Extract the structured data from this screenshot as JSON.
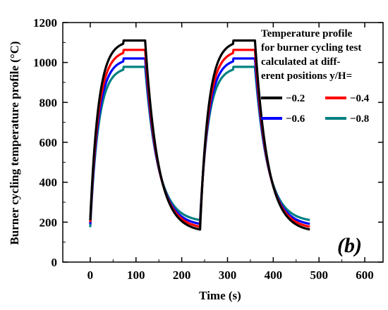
{
  "chart_data": {
    "type": "line",
    "panel_label": "(b)",
    "xlabel": "Time (s)",
    "ylabel": "Burner cycling temperature profile (°C)",
    "xlim": [
      -60,
      640
    ],
    "ylim": [
      0,
      1200
    ],
    "xticks": [
      0,
      100,
      200,
      300,
      400,
      500,
      600
    ],
    "yticks": [
      0,
      200,
      400,
      600,
      800,
      1000,
      1200
    ],
    "grid": false,
    "legend": {
      "placement": "top-right",
      "title_lines": [
        "Temperature profile",
        "for burner cycling test",
        "calculated at diff-",
        "erent positions y/H="
      ]
    },
    "series": [
      {
        "name": "−0.2",
        "color": "#000000",
        "plateau": 1110,
        "bottom": 150,
        "start": 210
      },
      {
        "name": "−0.4",
        "color": "#ff0000",
        "plateau": 1063,
        "bottom": 165,
        "start": 200
      },
      {
        "name": "−0.6",
        "color": "#0000ff",
        "plateau": 1020,
        "bottom": 180,
        "start": 190
      },
      {
        "name": "−0.8",
        "color": "#008080",
        "plateau": 978,
        "bottom": 200,
        "start": 175
      }
    ],
    "cycle": {
      "heat_start": [
        0,
        240
      ],
      "heat_end": [
        120,
        360
      ],
      "cool_end": [
        240,
        480
      ]
    }
  }
}
